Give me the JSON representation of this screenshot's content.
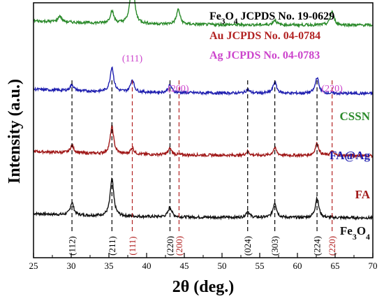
{
  "chart_data": {
    "type": "line",
    "xlabel": "2θ (deg.)",
    "ylabel": "Intensity (a.u.)",
    "xlim": [
      25,
      70
    ],
    "xticks": [
      25,
      30,
      35,
      40,
      45,
      50,
      55,
      60,
      65,
      70
    ],
    "grid": false,
    "legend_text": [
      {
        "text": "Fe3O4 JCPDS No. 19-0629",
        "color": "#000000"
      },
      {
        "text": "Au JCPDS No. 04-0784",
        "color": "#b22222"
      },
      {
        "text": "Ag JCPDS No. 04-0783",
        "color": "#cc44cc"
      }
    ],
    "series": [
      {
        "name": "Fe3O4",
        "color": "#111111",
        "baseline": 0.0,
        "peaks": [
          [
            30.1,
            0.1
          ],
          [
            35.4,
            0.3
          ],
          [
            43.1,
            0.08
          ],
          [
            53.4,
            0.05
          ],
          [
            57.0,
            0.12
          ],
          [
            62.6,
            0.16
          ]
        ]
      },
      {
        "name": "FA",
        "color": "#a01818",
        "baseline": 0.5,
        "peaks": [
          [
            30.1,
            0.06
          ],
          [
            35.4,
            0.22
          ],
          [
            38.1,
            0.05
          ],
          [
            43.1,
            0.05
          ],
          [
            53.4,
            0.03
          ],
          [
            57.0,
            0.06
          ],
          [
            62.6,
            0.1
          ],
          [
            64.6,
            0.03
          ]
        ]
      },
      {
        "name": "FA@Ag",
        "color": "#2020b0",
        "baseline": 1.0,
        "peaks": [
          [
            30.1,
            0.05
          ],
          [
            35.4,
            0.2
          ],
          [
            38.1,
            0.1
          ],
          [
            43.1,
            0.06
          ],
          [
            53.4,
            0.03
          ],
          [
            57.0,
            0.09
          ],
          [
            62.6,
            0.13
          ]
        ]
      },
      {
        "name": "CSSN",
        "color": "#2a8a2a",
        "baseline": 1.55,
        "peaks": [
          [
            28.5,
            0.05
          ],
          [
            35.4,
            0.1
          ],
          [
            38.1,
            0.42
          ],
          [
            44.2,
            0.12
          ],
          [
            57.0,
            0.04
          ],
          [
            64.6,
            0.11
          ]
        ]
      }
    ],
    "peak_labels": [
      {
        "text": "(111)",
        "x": 38.1,
        "color": "#cc44cc"
      },
      {
        "text": "(200)",
        "x": 44.2,
        "color": "#cc44cc"
      },
      {
        "text": "(220)",
        "x": 64.6,
        "color": "#cc44cc"
      }
    ],
    "ref_lines": [
      {
        "x": 30.1,
        "hkl": "(112)",
        "color": "#000000"
      },
      {
        "x": 35.4,
        "hkl": "(211)",
        "color": "#000000"
      },
      {
        "x": 38.1,
        "hkl": "(111)",
        "color": "#b22222"
      },
      {
        "x": 43.1,
        "hkl": "(220)",
        "color": "#000000"
      },
      {
        "x": 44.3,
        "hkl": "(200)",
        "color": "#b22222"
      },
      {
        "x": 53.4,
        "hkl": "(024)",
        "color": "#000000"
      },
      {
        "x": 57.0,
        "hkl": "(303)",
        "color": "#000000"
      },
      {
        "x": 62.6,
        "hkl": "(224)",
        "color": "#000000"
      },
      {
        "x": 64.6,
        "hkl": "(220)",
        "color": "#b22222"
      }
    ]
  }
}
